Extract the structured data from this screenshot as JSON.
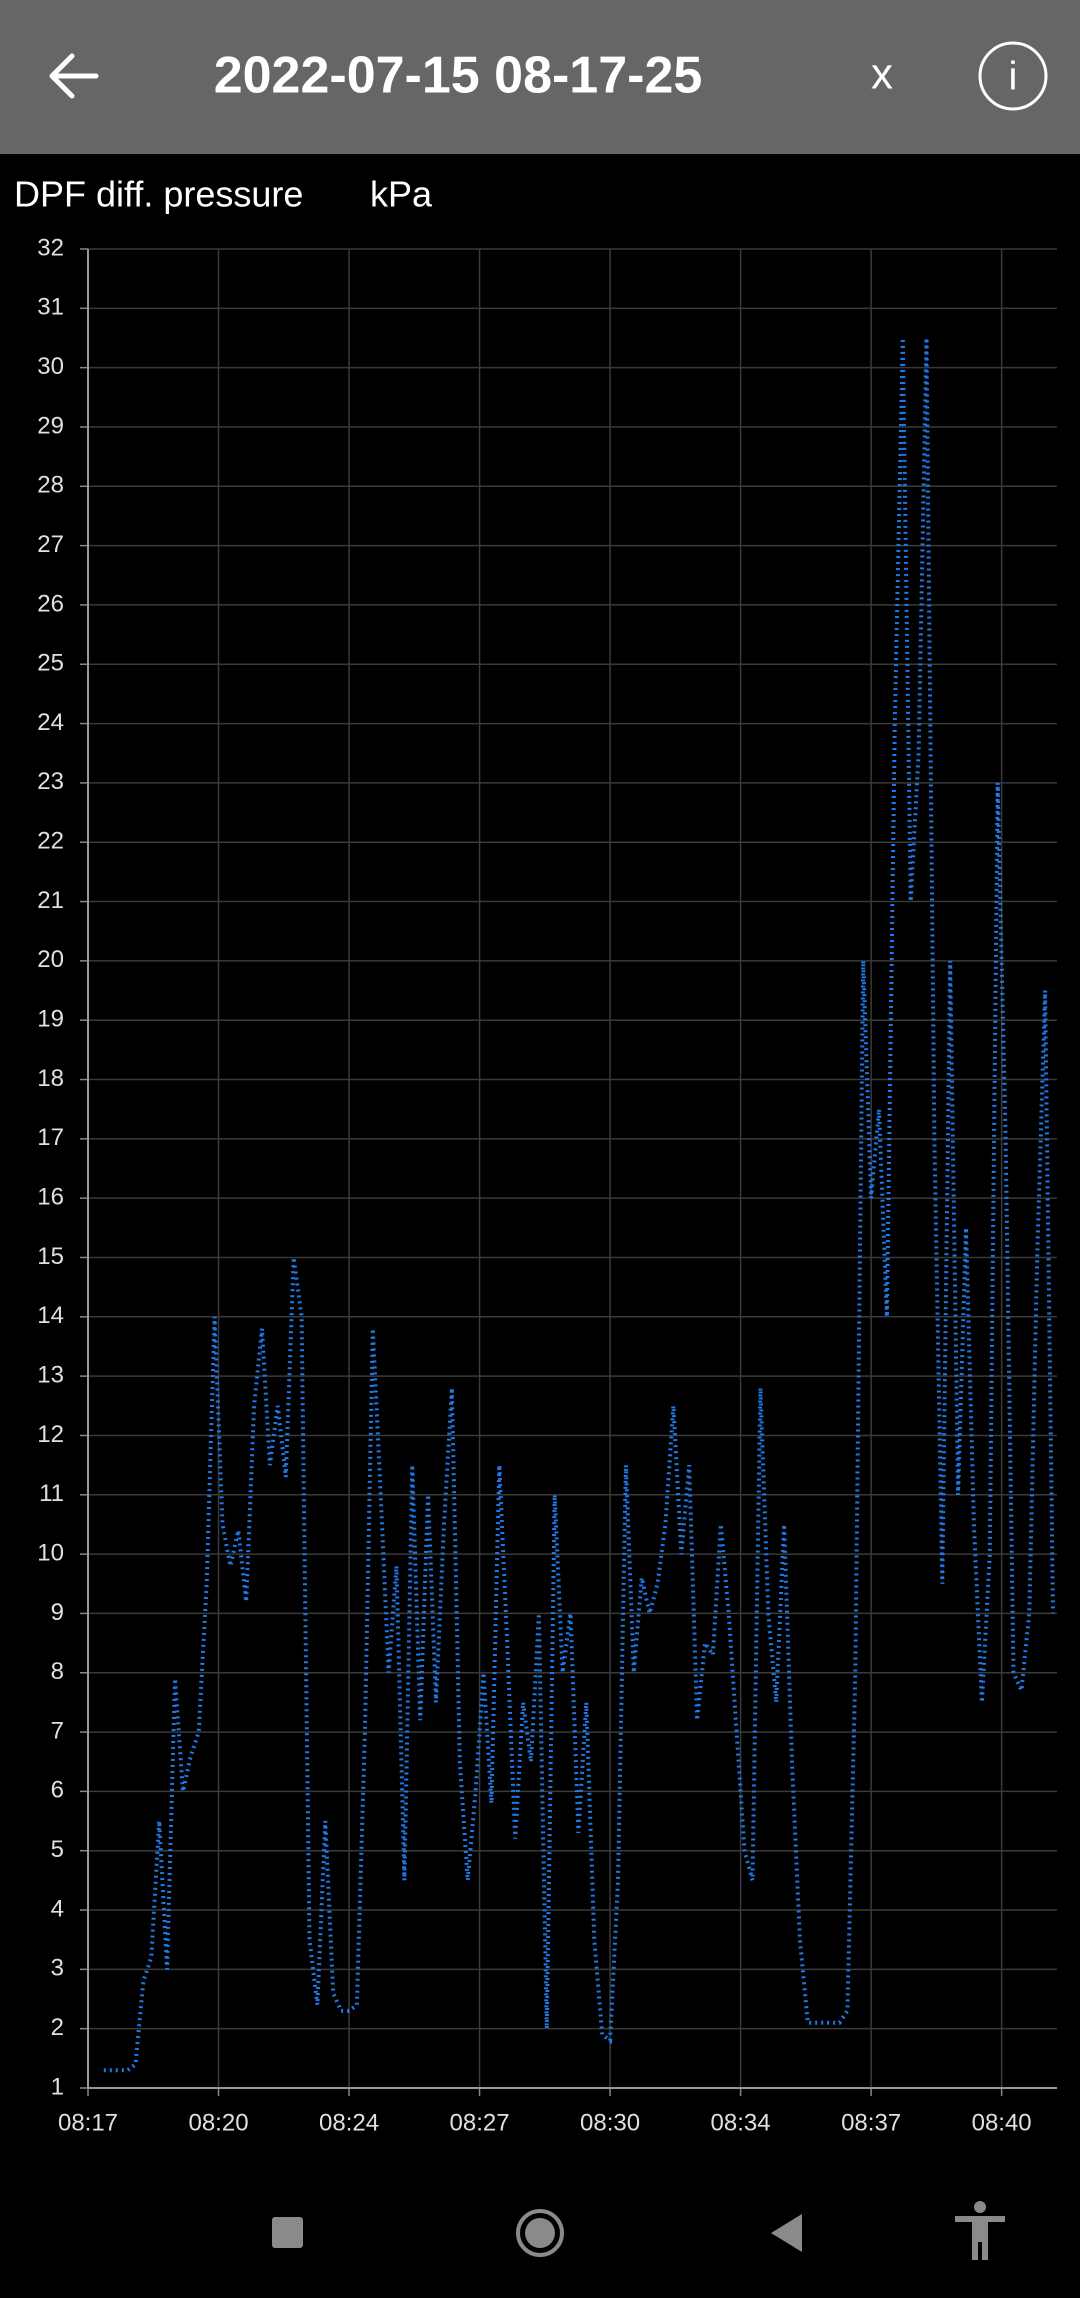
{
  "header": {
    "title": "2022-07-15 08-17-25",
    "close": "x",
    "info": "i"
  },
  "chart_data": {
    "type": "line",
    "title": "DPF diff. pressure",
    "y_label": "kPa",
    "color": "#1f7ae8",
    "grid": true,
    "xlim": [
      497.4,
      521.9
    ],
    "xticks": [
      {
        "value": 497.4,
        "label": "08:17"
      },
      {
        "value": 500.7,
        "label": "08:20"
      },
      {
        "value": 504.0,
        "label": "08:24"
      },
      {
        "value": 507.3,
        "label": "08:27"
      },
      {
        "value": 510.6,
        "label": "08:30"
      },
      {
        "value": 513.9,
        "label": "08:34"
      },
      {
        "value": 517.2,
        "label": "08:37"
      },
      {
        "value": 520.5,
        "label": "08:40"
      }
    ],
    "ylim": [
      1,
      32
    ],
    "yticks": [
      1,
      2,
      3,
      4,
      5,
      6,
      7,
      8,
      9,
      10,
      11,
      12,
      13,
      14,
      15,
      16,
      17,
      18,
      19,
      20,
      21,
      22,
      23,
      24,
      25,
      26,
      27,
      28,
      29,
      30,
      31,
      32
    ],
    "x": [
      497.8,
      498.0,
      498.2,
      498.4,
      498.6,
      498.8,
      499.0,
      499.2,
      499.4,
      499.6,
      499.8,
      500.0,
      500.2,
      500.4,
      500.6,
      500.8,
      501.0,
      501.2,
      501.4,
      501.6,
      501.8,
      502.0,
      502.2,
      502.4,
      502.6,
      502.8,
      503.0,
      503.2,
      503.4,
      503.6,
      503.8,
      504.0,
      504.2,
      504.4,
      504.6,
      504.8,
      505.0,
      505.2,
      505.4,
      505.6,
      505.8,
      506.0,
      506.2,
      506.4,
      506.6,
      506.8,
      507.0,
      507.2,
      507.4,
      507.6,
      507.8,
      508.0,
      508.2,
      508.4,
      508.6,
      508.8,
      509.0,
      509.2,
      509.4,
      509.6,
      509.8,
      510.0,
      510.2,
      510.4,
      510.6,
      510.8,
      511.0,
      511.2,
      511.4,
      511.6,
      511.8,
      512.0,
      512.2,
      512.4,
      512.6,
      512.8,
      513.0,
      513.2,
      513.4,
      513.6,
      513.8,
      514.0,
      514.2,
      514.4,
      514.6,
      514.8,
      515.0,
      515.2,
      515.4,
      515.6,
      515.8,
      516.0,
      516.2,
      516.4,
      516.6,
      516.8,
      517.0,
      517.2,
      517.4,
      517.6,
      517.8,
      518.0,
      518.2,
      518.4,
      518.6,
      518.8,
      519.0,
      519.2,
      519.4,
      519.6,
      519.8,
      520.0,
      520.2,
      520.4,
      520.6,
      520.8,
      521.0,
      521.2,
      521.4,
      521.6,
      521.8
    ],
    "values": [
      1.3,
      1.3,
      1.3,
      1.3,
      1.4,
      2.8,
      3.2,
      5.5,
      3.0,
      7.9,
      6.0,
      6.6,
      7.0,
      9.5,
      14.0,
      10.5,
      9.8,
      10.4,
      9.2,
      12.5,
      13.8,
      11.5,
      12.5,
      11.3,
      15.0,
      14.0,
      3.5,
      2.4,
      5.5,
      2.6,
      2.3,
      2.3,
      2.4,
      7.0,
      13.8,
      11.0,
      8.0,
      9.8,
      4.5,
      11.5,
      7.2,
      11.0,
      7.5,
      10.5,
      12.8,
      6.5,
      4.5,
      6.0,
      8.0,
      5.8,
      11.5,
      8.5,
      5.2,
      7.5,
      6.5,
      9.0,
      2.0,
      11.0,
      8.0,
      9.0,
      5.3,
      7.5,
      3.5,
      1.9,
      1.8,
      4.5,
      11.5,
      8.0,
      9.6,
      9.0,
      9.5,
      10.5,
      12.5,
      10.0,
      11.5,
      7.2,
      8.5,
      8.3,
      10.5,
      9.0,
      7.0,
      5.0,
      4.5,
      12.8,
      9.0,
      7.5,
      10.5,
      6.5,
      3.5,
      2.1,
      2.1,
      2.1,
      2.1,
      2.1,
      2.3,
      8.0,
      20.0,
      16.0,
      17.5,
      14.0,
      24.0,
      30.5,
      21.0,
      23.5,
      30.5,
      17.0,
      9.5,
      20.0,
      11.0,
      15.5,
      10.5,
      7.5,
      10.0,
      23.0,
      17.0,
      8.0,
      7.7,
      9.0,
      15.0,
      19.5,
      9.0
    ]
  }
}
